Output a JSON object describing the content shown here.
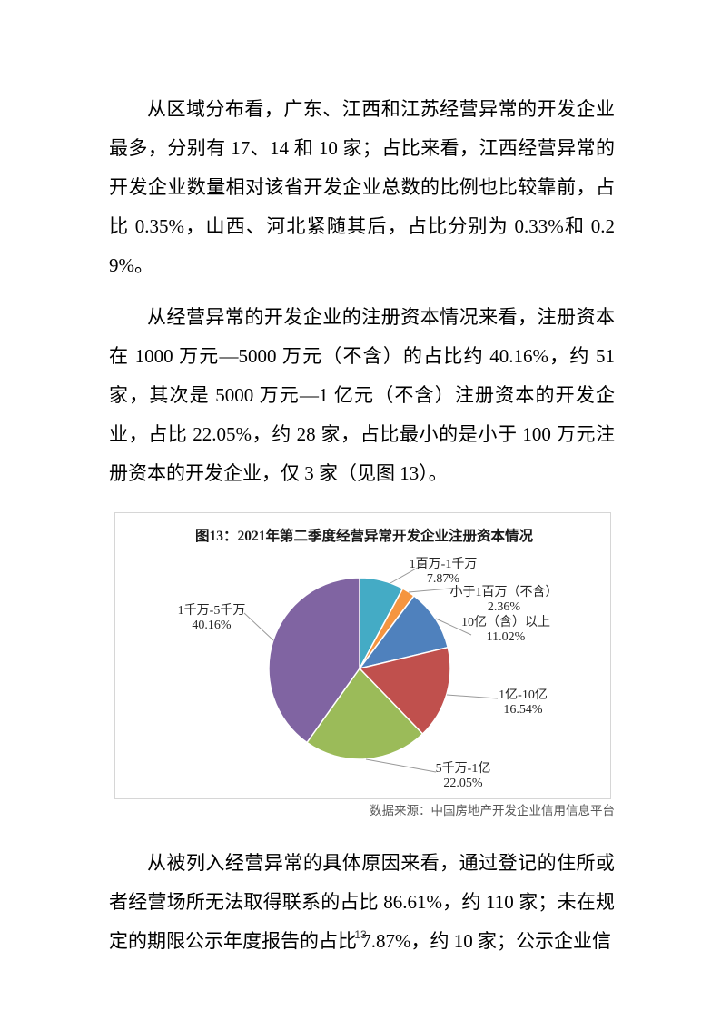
{
  "doc": {
    "paragraphs": [
      "从区域分布看，广东、江西和江苏经营异常的开发企业最多，分别有 17、14 和 10 家；占比来看，江西经营异常的开发企业数量相对该省开发企业总数的比例也比较靠前，占比 0.35%，山西、河北紧随其后，占比分别为 0.33%和 0.29%。",
      "从经营异常的开发企业的注册资本情况来看，注册资本在 1000 万元—5000 万元（不含）的占比约 40.16%，约 51 家，其次是 5000 万元—1 亿元（不含）注册资本的开发企业，占比 22.05%，约 28 家，占比最小的是小于 100 万元注册资本的开发企业，仅 3 家（见图 13）。",
      "从被列入经营异常的具体原因来看，通过登记的住所或者经营场所无法取得联系的占比 86.61%，约 110 家；未在规定的期限公示年度报告的占比 7.87%，约 10 家；公示企业信"
    ],
    "page_number": "13"
  },
  "chart_data": {
    "type": "pie",
    "title": "图13：2021年第二季度经营异常开发企业注册资本情况",
    "source": "数据来源：中国房地产开发企业信用信息平台",
    "unit": "%",
    "start_angle_deg": 0,
    "direction": "clockwise",
    "legend_position": "callout-labels",
    "series": [
      {
        "label": "1百万-1千万",
        "value": 7.87,
        "color": "#44ABC5"
      },
      {
        "label": "小于1百万（不含）",
        "value": 2.36,
        "color": "#F59540"
      },
      {
        "label": "10亿（含）以上",
        "value": 11.02,
        "color": "#4F81BD"
      },
      {
        "label": "1亿-10亿",
        "value": 16.54,
        "color": "#C0504D"
      },
      {
        "label": "5千万-1亿",
        "value": 22.05,
        "color": "#9BBB59"
      },
      {
        "label": "1千万-5千万",
        "value": 40.16,
        "color": "#8064A2"
      }
    ]
  }
}
